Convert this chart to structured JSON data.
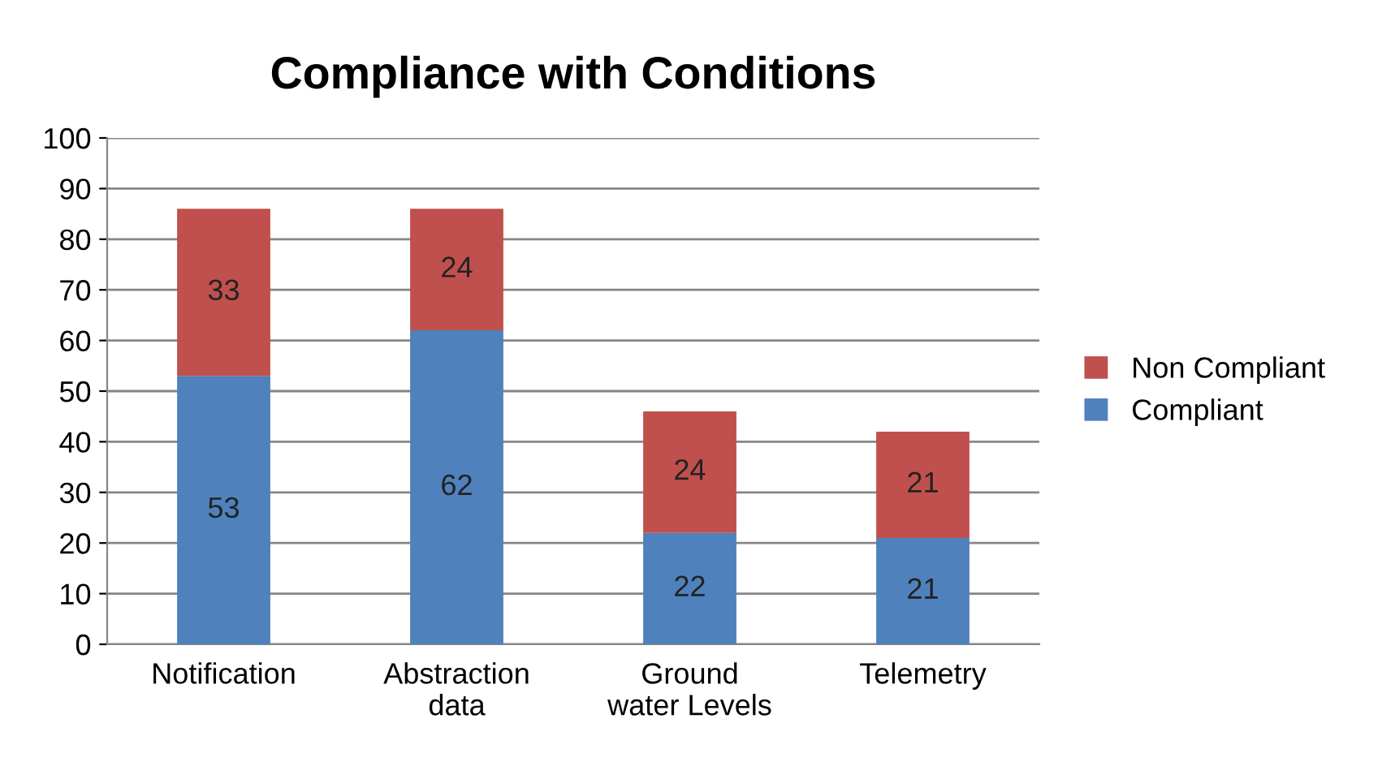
{
  "chart_data": {
    "type": "bar",
    "title": "Compliance with Conditions",
    "categories": [
      "Notification",
      "Abstraction\ndata",
      "Ground\nwater Levels",
      "Telemetry"
    ],
    "stacked": true,
    "series": [
      {
        "name": "Compliant",
        "color": "#4f81bd",
        "values": [
          53,
          62,
          22,
          21
        ]
      },
      {
        "name": "Non Compliant",
        "color": "#c0504d",
        "values": [
          33,
          24,
          24,
          21
        ]
      }
    ],
    "ylim": [
      0,
      100
    ],
    "yticks": [
      0,
      10,
      20,
      30,
      40,
      50,
      60,
      70,
      80,
      90,
      100
    ],
    "grid": "y",
    "legend": "right",
    "data_labels": true
  }
}
